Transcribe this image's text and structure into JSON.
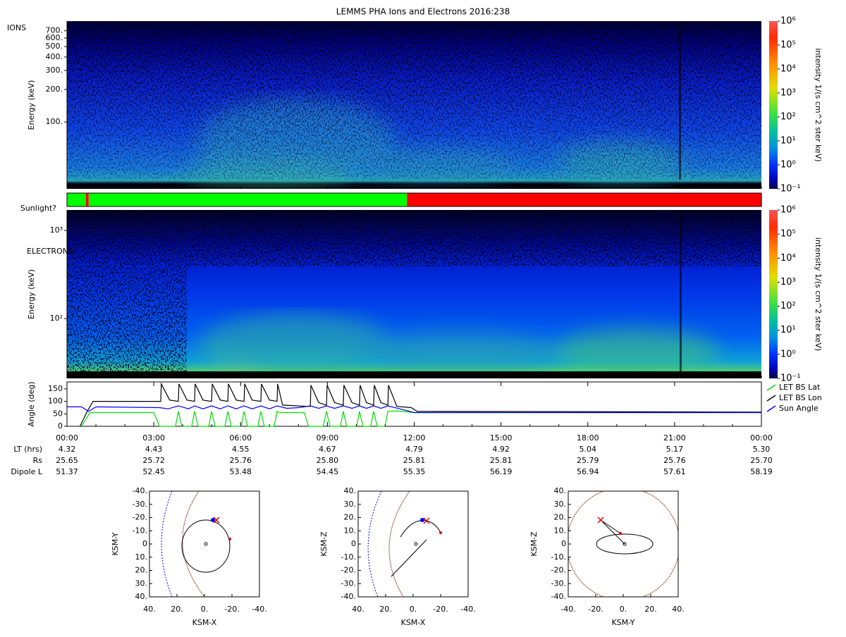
{
  "title": "LEMMS PHA Ions and Electrons  2016:238",
  "chart_data": [
    {
      "type": "spectrogram",
      "label": "IONS",
      "y_label": "Energy (keV)",
      "log_y": true,
      "ylim": [
        24,
        860
      ],
      "yticks": [
        {
          "value": 100,
          "label": "100."
        },
        {
          "value": 200,
          "label": "200."
        },
        {
          "value": 300,
          "label": "300."
        },
        {
          "value": 400,
          "label": "400."
        },
        {
          "value": 500,
          "label": "500."
        },
        {
          "value": 600,
          "label": "600."
        },
        {
          "value": 700,
          "label": "700."
        }
      ],
      "colorbar": {
        "label": "intensity 1/(s cm^2 ster keV)",
        "log": true,
        "lim": [
          0.1,
          1000000
        ],
        "ticks": [
          {
            "value": 0.1,
            "label": "10⁻¹"
          },
          {
            "value": 1,
            "label": "10⁰"
          },
          {
            "value": 10,
            "label": "10¹"
          },
          {
            "value": 100,
            "label": "10²"
          },
          {
            "value": 1000,
            "label": "10³"
          },
          {
            "value": 10000,
            "label": "10⁴"
          },
          {
            "value": 100000,
            "label": "10⁵"
          },
          {
            "value": 1000000,
            "label": "10⁶"
          }
        ]
      }
    },
    {
      "type": "timeline",
      "label": "Sunlight?",
      "segments": [
        {
          "start": 0,
          "end": 0.65,
          "color": "#00ff00"
        },
        {
          "start": 0.65,
          "end": 0.75,
          "color": "#ff0000"
        },
        {
          "start": 0.75,
          "end": 11.75,
          "color": "#00ff00"
        },
        {
          "start": 11.75,
          "end": 24,
          "color": "#ff0000"
        }
      ]
    },
    {
      "type": "spectrogram",
      "label": "ELECTRONS",
      "y_label": "Energy (keV)",
      "log_y": true,
      "ylim": [
        21,
        1706
      ],
      "yticks": [
        {
          "value": 100,
          "label": "10²"
        },
        {
          "value": 1000,
          "label": "10³"
        }
      ],
      "colorbar": {
        "label": "intensity 1/(s cm^2 ster keV)",
        "log": true,
        "lim": [
          0.1,
          1000000
        ],
        "ticks": [
          {
            "value": 0.1,
            "label": "10⁻¹"
          },
          {
            "value": 1,
            "label": "10⁰"
          },
          {
            "value": 10,
            "label": "10¹"
          },
          {
            "value": 100,
            "label": "10²"
          },
          {
            "value": 1000,
            "label": "10³"
          },
          {
            "value": 10000,
            "label": "10⁴"
          },
          {
            "value": 100000,
            "label": "10⁵"
          },
          {
            "value": 1000000,
            "label": "10⁶"
          }
        ]
      }
    },
    {
      "type": "line",
      "y_label": "Angle (deg)",
      "xlim": [
        0,
        24
      ],
      "xticks": [
        {
          "value": 0,
          "label": "00:00"
        },
        {
          "value": 3,
          "label": "03:00"
        },
        {
          "value": 6,
          "label": "06:00"
        },
        {
          "value": 9,
          "label": "09:00"
        },
        {
          "value": 12,
          "label": "12:00"
        },
        {
          "value": 15,
          "label": "15:00"
        },
        {
          "value": 18,
          "label": "18:00"
        },
        {
          "value": 21,
          "label": "21:00"
        },
        {
          "value": 24,
          "label": "00:00"
        }
      ],
      "ylim": [
        0,
        178
      ],
      "yticks": [
        0,
        50,
        100,
        150
      ],
      "series": [
        {
          "name": "LET BS Lat",
          "color": "#00dd00",
          "x": [
            0.5,
            0.8,
            3.0,
            3.2,
            3.75,
            3.85,
            3.97,
            4.31,
            4.41,
            4.53,
            4.9,
            5.0,
            5.12,
            5.46,
            5.56,
            5.68,
            6.02,
            6.12,
            6.24,
            6.6,
            6.7,
            6.82,
            7.16,
            7.26,
            7.35,
            8.2,
            8.35,
            8.85,
            8.97,
            9.09,
            9.45,
            9.55,
            9.67,
            10.01,
            10.11,
            10.23,
            10.5,
            10.6,
            10.72,
            10.99,
            11.09,
            11.4,
            12,
            24
          ],
          "values": [
            0,
            55,
            55,
            0,
            0,
            60,
            0,
            0,
            60,
            0,
            0,
            60,
            0,
            0,
            60,
            0,
            0,
            60,
            0,
            0,
            60,
            0,
            0,
            60,
            55,
            55,
            0,
            0,
            60,
            0,
            0,
            60,
            0,
            0,
            60,
            0,
            0,
            60,
            0,
            0,
            60,
            62,
            55,
            55
          ]
        },
        {
          "name": "LET BS Lon",
          "color": "#000000",
          "x": [
            0.45,
            0.7,
            0.9,
            3.24,
            3.26,
            3.55,
            3.85,
            3.87,
            4.15,
            4.41,
            4.43,
            4.7,
            5.0,
            5.02,
            5.3,
            5.56,
            5.58,
            5.85,
            6.12,
            6.14,
            6.4,
            6.7,
            6.72,
            7.0,
            7.26,
            7.28,
            7.45,
            8.3,
            8.41,
            8.43,
            8.7,
            8.97,
            8.99,
            9.25,
            9.55,
            9.57,
            9.85,
            10.11,
            10.13,
            10.35,
            10.6,
            10.62,
            10.85,
            11.09,
            11.11,
            11.4,
            11.9,
            12.1,
            24
          ],
          "values": [
            0,
            60,
            100,
            100,
            170,
            105,
            100,
            170,
            105,
            100,
            170,
            105,
            100,
            170,
            105,
            100,
            170,
            105,
            100,
            170,
            105,
            100,
            170,
            105,
            100,
            170,
            85,
            80,
            80,
            165,
            95,
            85,
            165,
            95,
            85,
            165,
            95,
            85,
            165,
            95,
            85,
            165,
            95,
            85,
            165,
            80,
            75,
            60,
            57
          ]
        },
        {
          "name": "Sun Angle",
          "color": "#0000ff",
          "x": [
            0,
            0.5,
            0.75,
            1.0,
            3.2,
            3.5,
            3.85,
            4.2,
            4.41,
            4.7,
            5.0,
            5.3,
            5.56,
            5.85,
            6.12,
            6.4,
            6.7,
            7.0,
            7.26,
            7.6,
            8.0,
            8.41,
            8.7,
            8.97,
            9.25,
            9.55,
            9.85,
            10.11,
            10.35,
            10.6,
            10.85,
            11.09,
            11.5,
            12,
            24
          ],
          "values": [
            78,
            78,
            60,
            78,
            75,
            70,
            82,
            70,
            82,
            70,
            82,
            70,
            82,
            70,
            82,
            70,
            82,
            70,
            82,
            72,
            75,
            82,
            72,
            82,
            72,
            82,
            72,
            82,
            72,
            82,
            72,
            82,
            70,
            55,
            55
          ]
        }
      ]
    },
    {
      "type": "orbit",
      "x_label": "KSM-X",
      "y_label": "KSM-Y",
      "xlim": [
        40,
        -40
      ],
      "ylim": [
        40,
        -40
      ],
      "xticks": [
        {
          "value": 40,
          "label": "40."
        },
        {
          "value": 20,
          "label": "20."
        },
        {
          "value": 0,
          "label": "0."
        },
        {
          "value": -20,
          "label": "-20."
        },
        {
          "value": -40,
          "label": "-40."
        }
      ],
      "yticks": [
        {
          "value": -40,
          "label": "-40."
        },
        {
          "value": -30,
          "label": "-30."
        },
        {
          "value": -20,
          "label": "-20."
        },
        {
          "value": -10,
          "label": "-10."
        },
        0,
        {
          "value": 10,
          "label": "10."
        },
        {
          "value": 20,
          "label": "20."
        },
        {
          "value": 30,
          "label": "30."
        },
        {
          "value": 40,
          "label": "40."
        }
      ]
    },
    {
      "type": "orbit",
      "x_label": "KSM-X",
      "y_label": "KSM-Z",
      "xlim": [
        40,
        -40
      ],
      "ylim": [
        -40,
        40
      ],
      "xticks": [
        {
          "value": 40,
          "label": "40."
        },
        {
          "value": 20,
          "label": "20."
        },
        {
          "value": 0,
          "label": "0."
        },
        {
          "value": -20,
          "label": "-20."
        },
        {
          "value": -40,
          "label": "-40."
        }
      ],
      "yticks": [
        {
          "value": 40,
          "label": "40."
        },
        {
          "value": 30,
          "label": "30."
        },
        {
          "value": 20,
          "label": "20."
        },
        {
          "value": 10,
          "label": "10."
        },
        0,
        {
          "value": -10,
          "label": "-10."
        },
        {
          "value": -20,
          "label": "-20."
        },
        {
          "value": -30,
          "label": "-30."
        },
        {
          "value": -40,
          "label": "-40."
        }
      ]
    },
    {
      "type": "orbit",
      "x_label": "KSM-Y",
      "y_label": "KSM-Z",
      "xlim": [
        -40,
        40
      ],
      "ylim": [
        -40,
        40
      ],
      "xticks": [
        {
          "value": -40,
          "label": "-40."
        },
        {
          "value": -20,
          "label": "-20."
        },
        {
          "value": 0,
          "label": "0."
        },
        {
          "value": 20,
          "label": "20."
        },
        {
          "value": 40,
          "label": "40."
        }
      ],
      "yticks": [
        {
          "value": 40,
          "label": "40."
        },
        {
          "value": 30,
          "label": "30."
        },
        {
          "value": 20,
          "label": "20."
        },
        {
          "value": 10,
          "label": "10."
        },
        0,
        {
          "value": -10,
          "label": "-10."
        },
        {
          "value": -20,
          "label": "-20."
        },
        {
          "value": -30,
          "label": "-30."
        },
        {
          "value": -40,
          "label": "-40."
        }
      ]
    }
  ],
  "ephemeris": [
    {
      "label": "LT (hrs)",
      "values": [
        "4.32",
        "4.43",
        "4.55",
        "4.67",
        "4.79",
        "4.92",
        "5.04",
        "5.17",
        "5.30"
      ]
    },
    {
      "label": "Rs",
      "values": [
        "25.65",
        "25.72",
        "25.76",
        "25.80",
        "25.81",
        "25.81",
        "25.79",
        "25.76",
        "25.70"
      ]
    },
    {
      "label": "Dipole L",
      "values": [
        "51.37",
        "52.45",
        "53.48",
        "54.45",
        "55.35",
        "56.19",
        "56.94",
        "57.61",
        "58.19"
      ]
    }
  ]
}
